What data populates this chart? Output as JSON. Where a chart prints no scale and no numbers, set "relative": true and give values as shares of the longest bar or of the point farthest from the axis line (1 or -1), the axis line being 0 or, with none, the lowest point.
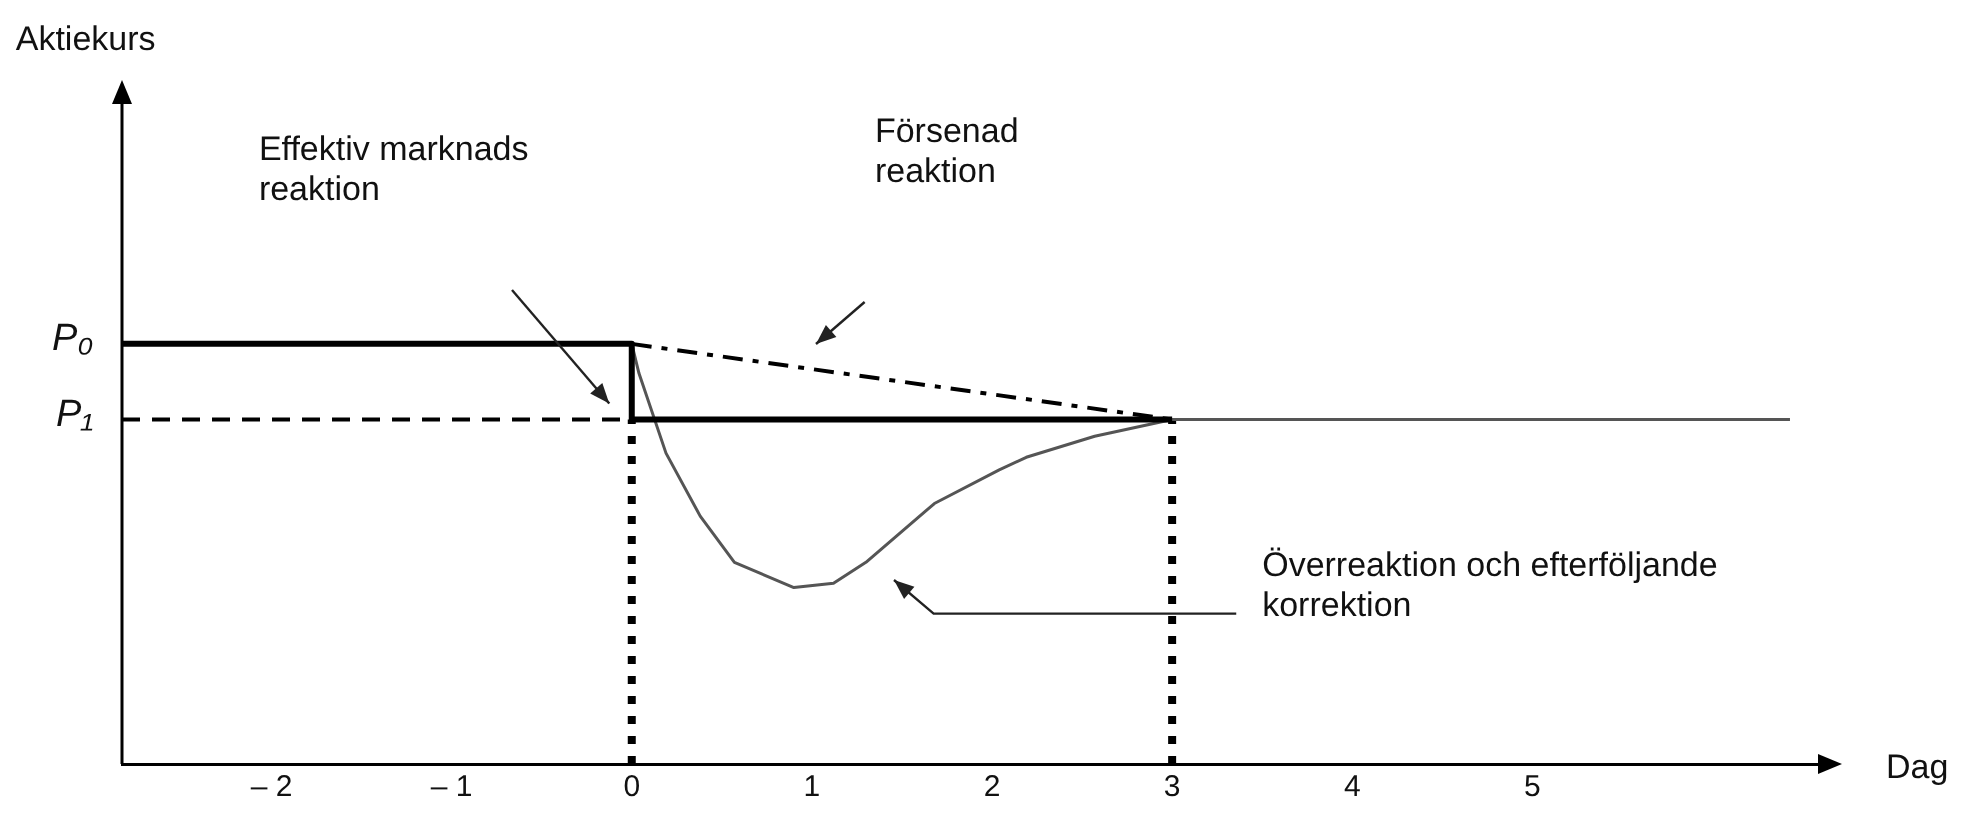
{
  "chart_data": {
    "type": "line",
    "relative": true,
    "xlabel": "Dag",
    "xlim": [
      -2.83,
      6.63
    ],
    "xticks": [
      {
        "value": -2,
        "label": "– 2"
      },
      {
        "value": -1,
        "label": "– 1"
      },
      0,
      1,
      2,
      3,
      4,
      5
    ],
    "grid": false,
    "legend": false,
    "marker": "none",
    "series": [
      {
        "color": "#000000",
        "line_style": "solid",
        "x": [
          -2.83,
          0,
          0,
          3
        ],
        "values": [
          1,
          1,
          0.82,
          0.82
        ]
      },
      {
        "color": "#000000",
        "line_style": "dashdot",
        "x": [
          0,
          3
        ],
        "values": [
          1,
          0.82
        ]
      },
      {
        "color": "#555555",
        "line_style": "solid",
        "x": [
          0,
          0.04,
          0.19,
          0.38,
          0.57,
          0.9,
          1.12,
          1.3,
          1.68,
          2.04,
          2.19,
          2.57,
          3,
          6.43
        ],
        "values": [
          1,
          0.93,
          0.74,
          0.59,
          0.48,
          0.42,
          0.43,
          0.48,
          0.62,
          0.7,
          0.73,
          0.78,
          0.82,
          0.82
        ]
      },
      {
        "color": "#000000",
        "line_style": "dashed",
        "x": [
          -2.83,
          0
        ],
        "values": [
          0.82,
          0.82
        ]
      },
      {
        "color": "#000000",
        "line_style": "dotted",
        "x": [
          0,
          0
        ],
        "values": [
          0,
          0.82
        ]
      },
      {
        "color": "#000000",
        "line_style": "dotted",
        "x": [
          3,
          3
        ],
        "values": [
          0,
          0.82
        ]
      }
    ],
    "annotations": [
      "Effektiv marknads\nreaktion",
      "Försenad\nreaktion",
      "Överreaktion och efterföljande\nkorrektion",
      {
        "text": "P₀",
        "x": -2.83,
        "y": 1
      },
      {
        "text": "P₁",
        "x": -2.83,
        "y": 0.82
      },
      "Aktiekurs"
    ]
  }
}
